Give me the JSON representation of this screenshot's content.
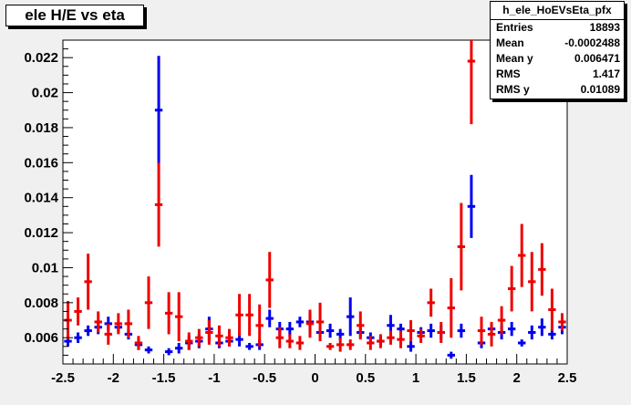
{
  "title": "ele H/E vs eta",
  "stats": {
    "name": "h_ele_HoEVsEta_pfx",
    "rows": [
      {
        "label": "Entries",
        "value": "18893"
      },
      {
        "label": "Mean",
        "value": "-0.0002488"
      },
      {
        "label": "Mean y",
        "value": "0.006471"
      },
      {
        "label": "RMS",
        "value": "1.417"
      },
      {
        "label": "RMS y",
        "value": "0.01089"
      }
    ]
  },
  "chart_data": {
    "type": "scatter",
    "title": "ele H/E vs eta",
    "xlabel": "",
    "ylabel": "",
    "xlim": [
      -2.5,
      2.5
    ],
    "ylim": [
      0.0045,
      0.023
    ],
    "xticks": [
      "-2.5",
      "-2",
      "-1.5",
      "-1",
      "-0.5",
      "0",
      "0.5",
      "1",
      "1.5",
      "2",
      "2.5"
    ],
    "yticks": [
      "0.006",
      "0.008",
      "0.01",
      "0.012",
      "0.014",
      "0.016",
      "0.018",
      "0.02",
      "0.022"
    ],
    "grid": false,
    "colors": {
      "frame_bg": "#f0f0f0",
      "plot_bg": "#ffffff",
      "series_blue": "#0000ee",
      "series_red": "#ee0000"
    },
    "series": [
      {
        "color": "blue",
        "x": [
          -2.45,
          -2.35,
          -2.25,
          -2.15,
          -2.05,
          -1.95,
          -1.85,
          -1.75,
          -1.65,
          -1.55,
          -1.45,
          -1.35,
          -1.25,
          -1.15,
          -1.05,
          -0.95,
          -0.85,
          -0.75,
          -0.65,
          -0.55,
          -0.45,
          -0.35,
          -0.25,
          -0.15,
          -0.05,
          0.05,
          0.15,
          0.25,
          0.35,
          0.45,
          0.55,
          0.65,
          0.75,
          0.85,
          0.95,
          1.05,
          1.15,
          1.25,
          1.35,
          1.45,
          1.55,
          1.65,
          1.75,
          1.85,
          1.95,
          2.05,
          2.15,
          2.25,
          2.35,
          2.45
        ],
        "y": [
          0.0058,
          0.006,
          0.0064,
          0.0066,
          0.0068,
          0.0066,
          0.0062,
          0.0056,
          0.0053,
          0.019,
          0.0052,
          0.0054,
          0.0057,
          0.0058,
          0.0065,
          0.0057,
          0.0058,
          0.0059,
          0.0055,
          0.0056,
          0.0071,
          0.0065,
          0.0065,
          0.0069,
          0.0069,
          0.0063,
          0.0064,
          0.0062,
          0.0072,
          0.0063,
          0.006,
          0.0058,
          0.0067,
          0.0065,
          0.0055,
          0.0063,
          0.0064,
          0.0063,
          0.005,
          0.0064,
          0.0135,
          0.0057,
          0.0065,
          0.0063,
          0.0065,
          0.0057,
          0.0063,
          0.0066,
          0.0062,
          0.0066
        ],
        "err": [
          0.0003,
          0.0003,
          0.0003,
          0.0004,
          0.0004,
          0.0003,
          0.0003,
          0.0003,
          0.0002,
          0.0031,
          0.0002,
          0.0003,
          0.0004,
          0.0004,
          0.0007,
          0.0003,
          0.0003,
          0.0004,
          0.0002,
          0.0003,
          0.0005,
          0.0004,
          0.0004,
          0.0003,
          0.0005,
          0.0003,
          0.0004,
          0.0003,
          0.0011,
          0.0003,
          0.0003,
          0.0003,
          0.0006,
          0.0003,
          0.0003,
          0.0003,
          0.0004,
          0.0004,
          0.0002,
          0.0004,
          0.0018,
          0.0003,
          0.0003,
          0.0004,
          0.0004,
          0.0002,
          0.0004,
          0.0005,
          0.0003,
          0.0004
        ]
      },
      {
        "color": "red",
        "x": [
          -2.45,
          -2.35,
          -2.25,
          -2.15,
          -2.05,
          -1.95,
          -1.85,
          -1.75,
          -1.65,
          -1.55,
          -1.45,
          -1.35,
          -1.25,
          -1.15,
          -1.05,
          -0.95,
          -0.85,
          -0.75,
          -0.65,
          -0.55,
          -0.45,
          -0.35,
          -0.25,
          -0.15,
          -0.05,
          0.05,
          0.15,
          0.25,
          0.35,
          0.45,
          0.55,
          0.65,
          0.75,
          0.85,
          0.95,
          1.05,
          1.15,
          1.25,
          1.35,
          1.45,
          1.55,
          1.65,
          1.75,
          1.85,
          1.95,
          2.05,
          2.15,
          2.25,
          2.35,
          2.45
        ],
        "y": [
          0.007,
          0.0075,
          0.0092,
          0.0069,
          0.0062,
          0.0068,
          0.0068,
          0.0057,
          0.008,
          0.0136,
          0.0074,
          0.0072,
          0.0058,
          0.006,
          0.0063,
          0.0061,
          0.006,
          0.0073,
          0.0073,
          0.0067,
          0.0093,
          0.006,
          0.0058,
          0.0057,
          0.0068,
          0.0069,
          0.0055,
          0.0056,
          0.0056,
          0.0067,
          0.0057,
          0.0058,
          0.006,
          0.0059,
          0.0064,
          0.0061,
          0.008,
          0.0063,
          0.0077,
          0.0112,
          0.0218,
          0.0064,
          0.0062,
          0.007,
          0.0088,
          0.0107,
          0.0092,
          0.0099,
          0.0076,
          0.0069
        ],
        "err": [
          0.0011,
          0.0008,
          0.0016,
          0.0006,
          0.0006,
          0.0006,
          0.0008,
          0.0004,
          0.0015,
          0.0024,
          0.0012,
          0.0014,
          0.0005,
          0.0005,
          0.0007,
          0.0006,
          0.0005,
          0.0012,
          0.0012,
          0.0012,
          0.0016,
          0.0006,
          0.0004,
          0.0004,
          0.0008,
          0.0011,
          0.0002,
          0.0004,
          0.0003,
          0.0008,
          0.0004,
          0.0004,
          0.0004,
          0.0005,
          0.0006,
          0.0004,
          0.0008,
          0.0006,
          0.0017,
          0.0025,
          0.0036,
          0.0008,
          0.0007,
          0.0008,
          0.0013,
          0.0018,
          0.0017,
          0.0015,
          0.0012,
          0.0005
        ]
      }
    ]
  }
}
